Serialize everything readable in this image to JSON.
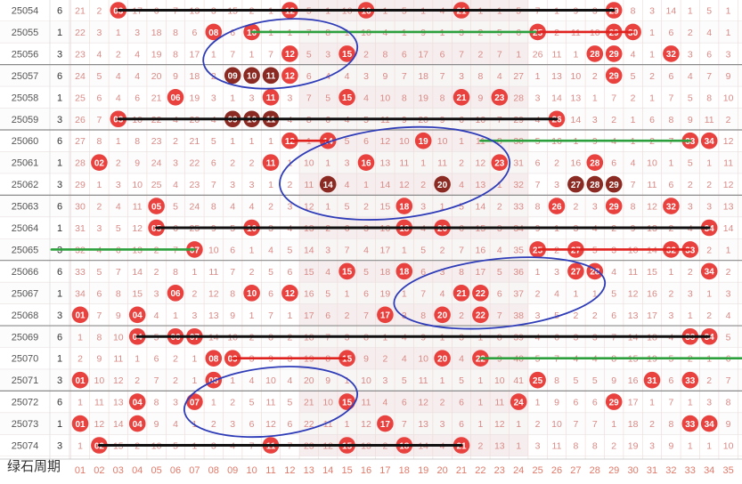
{
  "chart_data": {
    "type": "table",
    "issues": [
      "25054",
      "25055",
      "25056",
      "25057",
      "25058",
      "25059",
      "25060",
      "25061",
      "25062",
      "25063",
      "25064",
      "25065",
      "25066",
      "25067",
      "25068",
      "25069",
      "25070",
      "25071",
      "25072",
      "25073",
      "25074"
    ],
    "mod_values": [
      6,
      1,
      3,
      6,
      1,
      3,
      6,
      1,
      3,
      6,
      1,
      3,
      6,
      1,
      3,
      6,
      1,
      3,
      6,
      1,
      3
    ],
    "number_labels": [
      "01",
      "02",
      "03",
      "04",
      "05",
      "06",
      "07",
      "08",
      "09",
      "10",
      "11",
      "12",
      "13",
      "14",
      "15",
      "16",
      "17",
      "18",
      "19",
      "20",
      "21",
      "22",
      "23",
      "24",
      "25",
      "26",
      "27",
      "28",
      "29",
      "30",
      "31",
      "32",
      "33",
      "34",
      "35"
    ],
    "drawn_numbers": [
      [
        3,
        12,
        16,
        21,
        29
      ],
      [
        8,
        10,
        25,
        29,
        30
      ],
      [
        12,
        15,
        28,
        29,
        32
      ],
      [
        9,
        10,
        11,
        12,
        29
      ],
      [
        6,
        11,
        15,
        21,
        23
      ],
      [
        3,
        9,
        10,
        11,
        26
      ],
      [
        12,
        14,
        19,
        33,
        34
      ],
      [
        2,
        11,
        16,
        23,
        28
      ],
      [
        14,
        20,
        27,
        28,
        29
      ],
      [
        5,
        18,
        26,
        29,
        32
      ],
      [
        5,
        10,
        18,
        20,
        34
      ],
      [
        7,
        25,
        27,
        32,
        33
      ],
      [
        15,
        18,
        27,
        28,
        34
      ],
      [
        6,
        10,
        12,
        21,
        22
      ],
      [
        1,
        4,
        17,
        20,
        22
      ],
      [
        4,
        6,
        7,
        33,
        34
      ],
      [
        8,
        9,
        15,
        20,
        22
      ],
      [
        1,
        8,
        25,
        31,
        33
      ],
      [
        4,
        7,
        15,
        24,
        29
      ],
      [
        1,
        4,
        17,
        33,
        34
      ],
      [
        2,
        11,
        15,
        18,
        21
      ]
    ],
    "miss_values": [
      [
        21,
        2,
        3,
        17,
        6,
        7,
        13,
        3,
        15,
        2,
        1,
        3,
        5,
        1,
        16,
        7,
        1,
        5,
        1,
        4,
        9,
        1,
        1,
        5,
        7,
        1,
        9,
        3,
        12,
        8,
        3,
        14,
        1,
        5,
        1
      ],
      [
        22,
        3,
        1,
        3,
        18,
        8,
        6,
        16,
        6,
        2,
        1,
        1,
        7,
        8,
        1,
        10,
        4,
        1,
        9,
        1,
        3,
        2,
        5,
        6,
        8,
        2,
        11,
        10,
        5,
        1,
        1,
        6,
        2,
        4,
        1
      ],
      [
        23,
        4,
        2,
        4,
        19,
        8,
        17,
        1,
        7,
        1,
        7,
        1,
        5,
        3,
        3,
        2,
        8,
        6,
        17,
        6,
        7,
        2,
        7,
        1,
        26,
        11,
        1,
        4,
        1,
        4,
        1,
        5,
        3,
        6,
        3
      ],
      [
        24,
        5,
        4,
        4,
        20,
        9,
        18,
        2,
        5,
        2,
        7,
        2,
        6,
        4,
        4,
        3,
        9,
        7,
        18,
        7,
        3,
        8,
        4,
        27,
        1,
        13,
        10,
        2,
        3,
        5,
        2,
        6,
        4,
        7,
        9
      ],
      [
        25,
        6,
        4,
        6,
        21,
        4,
        19,
        3,
        1,
        3,
        2,
        3,
        7,
        5,
        4,
        4,
        10,
        8,
        19,
        8,
        6,
        9,
        6,
        28,
        3,
        14,
        13,
        1,
        7,
        2,
        1,
        7,
        5,
        8,
        10
      ],
      [
        26,
        7,
        1,
        10,
        22,
        4,
        20,
        4,
        1,
        4,
        2,
        4,
        8,
        6,
        4,
        5,
        11,
        9,
        20,
        9,
        6,
        10,
        7,
        29,
        4,
        15,
        14,
        3,
        2,
        1,
        6,
        8,
        9,
        11,
        2
      ],
      [
        27,
        8,
        1,
        8,
        23,
        2,
        21,
        5,
        1,
        1,
        1,
        1,
        1,
        7,
        5,
        6,
        12,
        10,
        21,
        10,
        1,
        11,
        8,
        30,
        5,
        16,
        1,
        9,
        4,
        1,
        2,
        7,
        10,
        1,
        12
      ],
      [
        28,
        1,
        2,
        9,
        24,
        3,
        22,
        6,
        2,
        2,
        1,
        1,
        10,
        1,
        3,
        1,
        13,
        11,
        1,
        11,
        2,
        12,
        9,
        31,
        6,
        2,
        16,
        1,
        6,
        4,
        10,
        1,
        5,
        1,
        11
      ],
      [
        29,
        1,
        3,
        10,
        25,
        4,
        23,
        7,
        3,
        3,
        1,
        2,
        11,
        1,
        4,
        1,
        14,
        12,
        2,
        1,
        4,
        13,
        1,
        32,
        7,
        3,
        1,
        2,
        1,
        7,
        11,
        6,
        2,
        2,
        12
      ],
      [
        30,
        2,
        4,
        11,
        1,
        5,
        24,
        8,
        4,
        4,
        2,
        3,
        12,
        1,
        5,
        2,
        15,
        1,
        3,
        1,
        5,
        14,
        2,
        33,
        8,
        1,
        2,
        3,
        1,
        8,
        12,
        1,
        3,
        3,
        13
      ],
      [
        31,
        3,
        5,
        12,
        1,
        6,
        25,
        9,
        5,
        1,
        3,
        4,
        13,
        2,
        6,
        3,
        16,
        1,
        4,
        1,
        6,
        15,
        3,
        34,
        9,
        1,
        3,
        4,
        2,
        9,
        13,
        2,
        4,
        1,
        14
      ],
      [
        32,
        4,
        6,
        13,
        2,
        7,
        1,
        10,
        6,
        1,
        4,
        5,
        14,
        3,
        7,
        4,
        17,
        1,
        5,
        2,
        7,
        16,
        4,
        35,
        1,
        2,
        1,
        5,
        3,
        10,
        14,
        1,
        1,
        2,
        1
      ],
      [
        33,
        5,
        7,
        14,
        2,
        8,
        1,
        11,
        7,
        2,
        5,
        6,
        15,
        4,
        1,
        5,
        18,
        1,
        6,
        3,
        8,
        17,
        5,
        36,
        1,
        3,
        1,
        1,
        4,
        11,
        15,
        1,
        2,
        1,
        2
      ],
      [
        34,
        6,
        8,
        15,
        3,
        1,
        2,
        12,
        8,
        1,
        6,
        1,
        16,
        5,
        1,
        6,
        19,
        1,
        7,
        4,
        1,
        1,
        6,
        37,
        2,
        4,
        1,
        1,
        5,
        12,
        16,
        2,
        3,
        1,
        3
      ],
      [
        1,
        7,
        9,
        1,
        4,
        1,
        3,
        13,
        9,
        1,
        7,
        1,
        17,
        6,
        2,
        7,
        1,
        3,
        8,
        1,
        2,
        1,
        7,
        38,
        3,
        5,
        2,
        2,
        6,
        13,
        17,
        3,
        1,
        2,
        4
      ],
      [
        1,
        8,
        10,
        1,
        5,
        1,
        1,
        14,
        10,
        2,
        8,
        2,
        18,
        7,
        3,
        8,
        1,
        4,
        9,
        1,
        3,
        1,
        8,
        39,
        4,
        6,
        3,
        3,
        7,
        14,
        18,
        4,
        1,
        1,
        5
      ],
      [
        2,
        9,
        11,
        1,
        6,
        2,
        1,
        1,
        1,
        3,
        9,
        3,
        19,
        8,
        1,
        9,
        2,
        4,
        10,
        1,
        4,
        1,
        9,
        40,
        5,
        7,
        4,
        4,
        8,
        15,
        19,
        5,
        2,
        1,
        6
      ],
      [
        1,
        10,
        12,
        2,
        7,
        2,
        1,
        1,
        1,
        4,
        10,
        4,
        20,
        9,
        1,
        10,
        3,
        5,
        11,
        1,
        5,
        1,
        10,
        41,
        1,
        8,
        5,
        5,
        9,
        16,
        1,
        6,
        1,
        2,
        7
      ],
      [
        1,
        11,
        13,
        1,
        8,
        3,
        1,
        1,
        2,
        5,
        11,
        5,
        21,
        10,
        1,
        11,
        4,
        6,
        12,
        2,
        6,
        1,
        11,
        1,
        1,
        9,
        6,
        6,
        1,
        17,
        1,
        7,
        1,
        3,
        8
      ],
      [
        1,
        12,
        14,
        1,
        9,
        4,
        1,
        2,
        3,
        6,
        12,
        6,
        22,
        11,
        1,
        12,
        1,
        7,
        13,
        3,
        6,
        1,
        12,
        1,
        2,
        10,
        7,
        7,
        1,
        18,
        2,
        8,
        1,
        1,
        9
      ],
      [
        1,
        1,
        15,
        2,
        10,
        5,
        1,
        3,
        4,
        7,
        1,
        7,
        23,
        12,
        1,
        13,
        2,
        1,
        14,
        4,
        1,
        2,
        13,
        1,
        3,
        11,
        8,
        8,
        2,
        19,
        3,
        9,
        1,
        1,
        10
      ]
    ],
    "watermark": "绿石周期"
  },
  "colors": {
    "ball_red": "#e8413e",
    "ball_dark": "#8b2a22",
    "miss_text": "#d98a86",
    "header_text": "#e07a6a",
    "issue_text": "#555555",
    "mark_blue": "#2e3cb8",
    "mark_green": "#2ca03c",
    "mark_red": "#e0221f",
    "mark_black": "#111111"
  }
}
